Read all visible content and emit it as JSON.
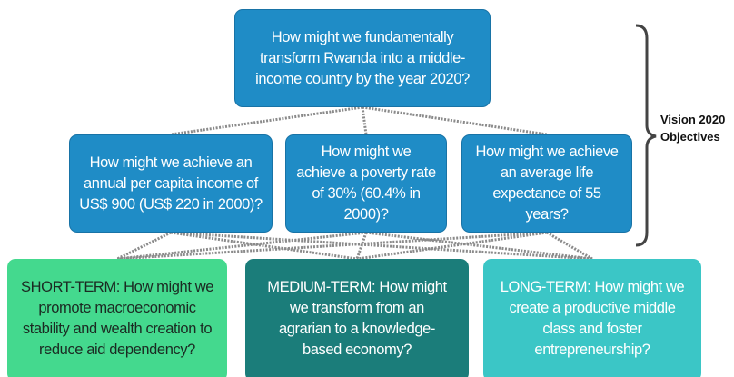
{
  "nodes": [
    {
      "label": "How might we fundamentally transform Rwanda into a middle-income country by the year 2020?"
    },
    {
      "label": "How might we achieve an annual per capita income of US$ 900 (US$ 220 in 2000)?"
    },
    {
      "label": "How might we achieve a poverty rate of 30% (60.4% in 2000)?"
    },
    {
      "label": "How might we achieve an average life expectance of 55 years?"
    },
    {
      "label": "SHORT-TERM: How might we promote macroeconomic stability and wealth creation to reduce aid dependency?"
    },
    {
      "label": "MEDIUM-TERM: How might we transform from an agrarian to a knowledge-based economy?"
    },
    {
      "label": "LONG-TERM: How might we create a productive middle class and foster entrepreneurship?"
    }
  ],
  "bracket_label": "Vision 2020 Objectives"
}
